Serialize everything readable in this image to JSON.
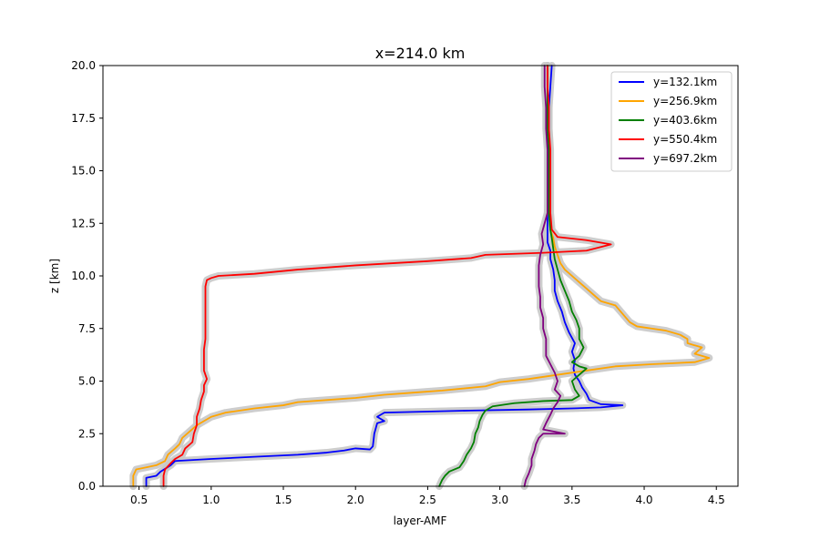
{
  "chart_data": {
    "type": "line",
    "title": "x=214.0 km",
    "xlabel": "layer-AMF",
    "ylabel": "z [km]",
    "xlim": [
      0.25,
      4.65
    ],
    "ylim": [
      0,
      20
    ],
    "xticks": [
      0.5,
      1.0,
      1.5,
      2.0,
      2.5,
      3.0,
      3.5,
      4.0,
      4.5
    ],
    "yticks": [
      0.0,
      2.5,
      5.0,
      7.5,
      10.0,
      12.5,
      15.0,
      17.5,
      20.0
    ],
    "xtick_labels": [
      "0.5",
      "1.0",
      "1.5",
      "2.0",
      "2.5",
      "3.0",
      "3.5",
      "4.0",
      "4.5"
    ],
    "ytick_labels": [
      "0.0",
      "2.5",
      "5.0",
      "7.5",
      "10.0",
      "12.5",
      "15.0",
      "17.5",
      "20.0"
    ],
    "grid": false,
    "legend_position": "top-right",
    "uncertainty_band_color": "#c8c8c8",
    "series": [
      {
        "name": "y=132.1km",
        "color": "#0000ff",
        "points": [
          [
            0.55,
            0
          ],
          [
            0.55,
            0.4
          ],
          [
            0.62,
            0.5
          ],
          [
            0.65,
            0.7
          ],
          [
            0.72,
            1.0
          ],
          [
            0.75,
            1.2
          ],
          [
            1.0,
            1.3
          ],
          [
            1.3,
            1.4
          ],
          [
            1.6,
            1.5
          ],
          [
            1.8,
            1.6
          ],
          [
            1.92,
            1.7
          ],
          [
            2.0,
            1.8
          ],
          [
            2.1,
            1.75
          ],
          [
            2.12,
            1.9
          ],
          [
            2.13,
            2.5
          ],
          [
            2.15,
            3.0
          ],
          [
            2.2,
            3.1
          ],
          [
            2.15,
            3.3
          ],
          [
            2.2,
            3.5
          ],
          [
            2.8,
            3.6
          ],
          [
            3.2,
            3.65
          ],
          [
            3.5,
            3.7
          ],
          [
            3.7,
            3.75
          ],
          [
            3.85,
            3.85
          ],
          [
            3.7,
            3.9
          ],
          [
            3.62,
            4.1
          ],
          [
            3.6,
            4.4
          ],
          [
            3.57,
            4.7
          ],
          [
            3.55,
            5.0
          ],
          [
            3.52,
            5.3
          ],
          [
            3.51,
            5.6
          ],
          [
            3.52,
            6.0
          ],
          [
            3.5,
            6.4
          ],
          [
            3.52,
            6.8
          ],
          [
            3.48,
            7.3
          ],
          [
            3.45,
            7.8
          ],
          [
            3.43,
            8.3
          ],
          [
            3.4,
            8.8
          ],
          [
            3.38,
            9.3
          ],
          [
            3.38,
            9.8
          ],
          [
            3.37,
            10.3
          ],
          [
            3.35,
            10.8
          ],
          [
            3.35,
            11.2
          ],
          [
            3.33,
            11.6
          ],
          [
            3.33,
            12.2
          ],
          [
            3.33,
            13
          ],
          [
            3.34,
            14
          ],
          [
            3.34,
            15
          ],
          [
            3.34,
            16
          ],
          [
            3.34,
            17
          ],
          [
            3.34,
            18
          ],
          [
            3.35,
            19
          ],
          [
            3.36,
            20
          ]
        ]
      },
      {
        "name": "y=256.9km",
        "color": "#ffa500",
        "points": [
          [
            0.46,
            0
          ],
          [
            0.46,
            0.5
          ],
          [
            0.48,
            0.8
          ],
          [
            0.55,
            0.9
          ],
          [
            0.62,
            1.0
          ],
          [
            0.68,
            1.2
          ],
          [
            0.7,
            1.5
          ],
          [
            0.75,
            1.8
          ],
          [
            0.78,
            2.0
          ],
          [
            0.8,
            2.3
          ],
          [
            0.85,
            2.6
          ],
          [
            0.9,
            2.9
          ],
          [
            0.95,
            3.1
          ],
          [
            1.0,
            3.3
          ],
          [
            1.1,
            3.5
          ],
          [
            1.3,
            3.7
          ],
          [
            1.5,
            3.85
          ],
          [
            1.6,
            4.0
          ],
          [
            1.8,
            4.1
          ],
          [
            2.0,
            4.2
          ],
          [
            2.2,
            4.35
          ],
          [
            2.4,
            4.45
          ],
          [
            2.6,
            4.55
          ],
          [
            2.9,
            4.75
          ],
          [
            3.0,
            4.95
          ],
          [
            3.2,
            5.1
          ],
          [
            3.4,
            5.3
          ],
          [
            3.6,
            5.5
          ],
          [
            3.8,
            5.7
          ],
          [
            4.05,
            5.8
          ],
          [
            4.2,
            5.85
          ],
          [
            4.35,
            5.9
          ],
          [
            4.45,
            6.1
          ],
          [
            4.35,
            6.3
          ],
          [
            4.4,
            6.6
          ],
          [
            4.3,
            6.8
          ],
          [
            4.3,
            7.0
          ],
          [
            4.25,
            7.2
          ],
          [
            4.15,
            7.4
          ],
          [
            4.05,
            7.5
          ],
          [
            3.95,
            7.6
          ],
          [
            3.9,
            7.8
          ],
          [
            3.85,
            8.2
          ],
          [
            3.8,
            8.6
          ],
          [
            3.7,
            8.8
          ],
          [
            3.65,
            9.1
          ],
          [
            3.6,
            9.4
          ],
          [
            3.55,
            9.7
          ],
          [
            3.5,
            10.0
          ],
          [
            3.45,
            10.3
          ],
          [
            3.42,
            10.6
          ],
          [
            3.4,
            11.0
          ],
          [
            3.38,
            11.4
          ],
          [
            3.37,
            11.8
          ],
          [
            3.35,
            12.2
          ],
          [
            3.34,
            13
          ],
          [
            3.34,
            14
          ],
          [
            3.34,
            15
          ],
          [
            3.34,
            16
          ],
          [
            3.33,
            17
          ],
          [
            3.33,
            18
          ],
          [
            3.33,
            19
          ],
          [
            3.33,
            20
          ]
        ]
      },
      {
        "name": "y=403.6km",
        "color": "#008000",
        "points": [
          [
            2.58,
            0
          ],
          [
            2.6,
            0.3
          ],
          [
            2.62,
            0.5
          ],
          [
            2.65,
            0.7
          ],
          [
            2.72,
            0.9
          ],
          [
            2.75,
            1.2
          ],
          [
            2.77,
            1.5
          ],
          [
            2.8,
            1.8
          ],
          [
            2.82,
            2.1
          ],
          [
            2.83,
            2.5
          ],
          [
            2.85,
            2.8
          ],
          [
            2.86,
            3.1
          ],
          [
            2.88,
            3.4
          ],
          [
            2.9,
            3.6
          ],
          [
            2.95,
            3.8
          ],
          [
            3.1,
            3.95
          ],
          [
            3.3,
            4.05
          ],
          [
            3.5,
            4.1
          ],
          [
            3.55,
            4.3
          ],
          [
            3.52,
            4.6
          ],
          [
            3.5,
            5.0
          ],
          [
            3.55,
            5.3
          ],
          [
            3.6,
            5.6
          ],
          [
            3.55,
            5.7
          ],
          [
            3.5,
            5.9
          ],
          [
            3.55,
            6.2
          ],
          [
            3.58,
            6.6
          ],
          [
            3.55,
            7.0
          ],
          [
            3.55,
            7.5
          ],
          [
            3.53,
            7.9
          ],
          [
            3.5,
            8.3
          ],
          [
            3.48,
            8.8
          ],
          [
            3.45,
            9.3
          ],
          [
            3.42,
            9.8
          ],
          [
            3.4,
            10.3
          ],
          [
            3.38,
            10.8
          ],
          [
            3.37,
            11.3
          ],
          [
            3.36,
            11.8
          ],
          [
            3.35,
            12.2
          ],
          [
            3.34,
            13
          ],
          [
            3.34,
            14
          ],
          [
            3.34,
            15
          ],
          [
            3.34,
            16
          ],
          [
            3.33,
            17
          ],
          [
            3.33,
            18
          ],
          [
            3.33,
            19
          ],
          [
            3.33,
            20
          ]
        ]
      },
      {
        "name": "y=550.4km",
        "color": "#ff0000",
        "points": [
          [
            0.67,
            0
          ],
          [
            0.67,
            0.5
          ],
          [
            0.68,
            0.8
          ],
          [
            0.72,
            1.1
          ],
          [
            0.75,
            1.3
          ],
          [
            0.8,
            1.5
          ],
          [
            0.82,
            1.8
          ],
          [
            0.87,
            2.1
          ],
          [
            0.88,
            2.5
          ],
          [
            0.9,
            2.9
          ],
          [
            0.9,
            3.3
          ],
          [
            0.92,
            3.7
          ],
          [
            0.93,
            4.1
          ],
          [
            0.95,
            4.5
          ],
          [
            0.95,
            4.8
          ],
          [
            0.97,
            5.1
          ],
          [
            0.95,
            5.5
          ],
          [
            0.95,
            6.0
          ],
          [
            0.95,
            6.5
          ],
          [
            0.96,
            7.0
          ],
          [
            0.96,
            7.5
          ],
          [
            0.96,
            8.0
          ],
          [
            0.96,
            8.5
          ],
          [
            0.96,
            9.0
          ],
          [
            0.96,
            9.5
          ],
          [
            0.97,
            9.8
          ],
          [
            1.0,
            9.9
          ],
          [
            1.05,
            10.0
          ],
          [
            1.3,
            10.1
          ],
          [
            1.6,
            10.3
          ],
          [
            2.0,
            10.5
          ],
          [
            2.5,
            10.7
          ],
          [
            2.8,
            10.85
          ],
          [
            2.9,
            11.0
          ],
          [
            3.1,
            11.05
          ],
          [
            3.3,
            11.1
          ],
          [
            3.6,
            11.2
          ],
          [
            3.77,
            11.5
          ],
          [
            3.6,
            11.7
          ],
          [
            3.4,
            11.85
          ],
          [
            3.36,
            12.2
          ],
          [
            3.35,
            13
          ],
          [
            3.35,
            14
          ],
          [
            3.35,
            15
          ],
          [
            3.35,
            16
          ],
          [
            3.34,
            17
          ],
          [
            3.34,
            18
          ],
          [
            3.33,
            19
          ],
          [
            3.33,
            20
          ]
        ]
      },
      {
        "name": "y=697.2km",
        "color": "#800080",
        "points": [
          [
            3.17,
            0
          ],
          [
            3.18,
            0.3
          ],
          [
            3.2,
            0.6
          ],
          [
            3.22,
            1.0
          ],
          [
            3.22,
            1.3
          ],
          [
            3.24,
            1.7
          ],
          [
            3.25,
            2.0
          ],
          [
            3.27,
            2.3
          ],
          [
            3.3,
            2.5
          ],
          [
            3.45,
            2.5
          ],
          [
            3.3,
            2.7
          ],
          [
            3.32,
            3.0
          ],
          [
            3.35,
            3.4
          ],
          [
            3.37,
            3.7
          ],
          [
            3.4,
            4.0
          ],
          [
            3.42,
            4.3
          ],
          [
            3.38,
            4.6
          ],
          [
            3.4,
            5.0
          ],
          [
            3.38,
            5.4
          ],
          [
            3.35,
            5.8
          ],
          [
            3.32,
            6.2
          ],
          [
            3.32,
            6.6
          ],
          [
            3.32,
            7.0
          ],
          [
            3.3,
            7.5
          ],
          [
            3.3,
            8.0
          ],
          [
            3.28,
            8.5
          ],
          [
            3.28,
            9.0
          ],
          [
            3.27,
            9.5
          ],
          [
            3.27,
            10.0
          ],
          [
            3.27,
            10.5
          ],
          [
            3.28,
            11.0
          ],
          [
            3.3,
            11.5
          ],
          [
            3.29,
            12.0
          ],
          [
            3.31,
            12.5
          ],
          [
            3.33,
            13
          ],
          [
            3.33,
            14
          ],
          [
            3.33,
            15
          ],
          [
            3.33,
            16
          ],
          [
            3.32,
            17
          ],
          [
            3.32,
            18
          ],
          [
            3.31,
            19
          ],
          [
            3.31,
            20
          ]
        ]
      }
    ]
  }
}
